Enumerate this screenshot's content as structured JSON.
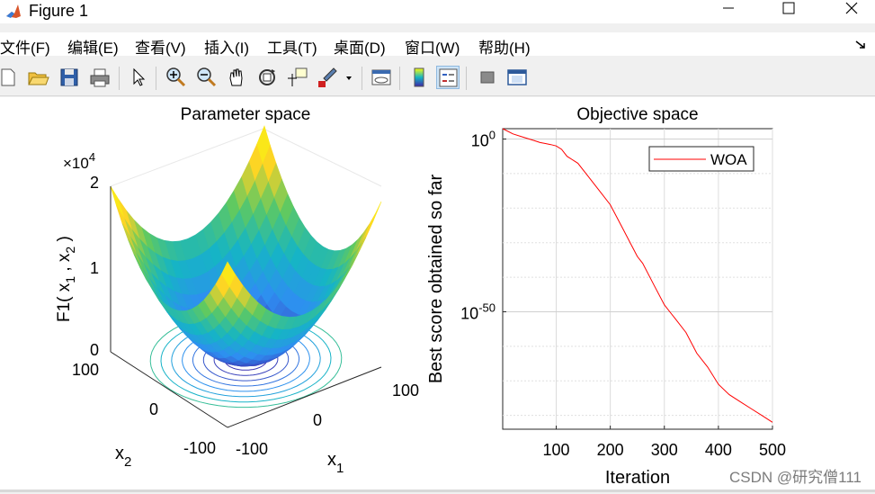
{
  "window": {
    "title": "Figure 1",
    "minimize_icon": "minimize-icon",
    "maximize_icon": "maximize-icon",
    "close_icon": "close-icon"
  },
  "menu": [
    "文件(F)",
    "编辑(E)",
    "查看(V)",
    "插入(I)",
    "工具(T)",
    "桌面(D)",
    "窗口(W)",
    "帮助(H)"
  ],
  "toolbar": [
    "new-figure-icon",
    "open-icon",
    "save-icon",
    "print-icon",
    "pointer-icon",
    "zoom-in-icon",
    "zoom-out-icon",
    "pan-icon",
    "rotate-icon",
    "data-cursor-icon",
    "brush-icon",
    "link-plot-icon",
    "colorbar-icon",
    "legend-icon",
    "hide-plot-tools-icon",
    "show-plot-tools-icon"
  ],
  "watermark": "CSDN @研究僧111",
  "chart_data": [
    {
      "type": "surface",
      "title": "Parameter space",
      "xlabel": "x",
      "xlabel_sub": "1",
      "ylabel": "x",
      "ylabel_sub": "2",
      "zlabel": "F1( x , x )",
      "zlabel_parts": [
        "F1( x",
        "1",
        " , x",
        "2",
        " )"
      ],
      "x_ticks": [
        "-100",
        "0",
        "100"
      ],
      "y_ticks": [
        "-100",
        "0",
        "100"
      ],
      "z_ticks": [
        "0",
        "1",
        "2"
      ],
      "z_exponent_base": "×10",
      "z_exponent": "4",
      "xlim": [
        -100,
        100
      ],
      "ylim": [
        -100,
        100
      ],
      "zlim": [
        0,
        20000
      ],
      "function": "x1^2 + x2^2",
      "colormap": [
        "#3e26a8",
        "#2f8ef2",
        "#15b5c4",
        "#5ec962",
        "#fcd225",
        "#f9fb0e"
      ]
    },
    {
      "type": "line",
      "title": "Objective space",
      "xlabel": "Iteration",
      "ylabel": "Best score obtained so far",
      "y_scale": "log",
      "xlim": [
        1,
        500
      ],
      "ylim_exp": [
        -84,
        3
      ],
      "x_ticks": [
        "100",
        "200",
        "300",
        "400",
        "500"
      ],
      "y_ticks": [
        {
          "base": "10",
          "exp": "0"
        },
        {
          "base": "10",
          "exp": "-50"
        }
      ],
      "grid": true,
      "legend_position": "top-right",
      "series": [
        {
          "name": "WOA",
          "color": "#ff0000",
          "x": [
            1,
            20,
            40,
            60,
            70,
            80,
            90,
            100,
            110,
            120,
            140,
            160,
            180,
            200,
            220,
            240,
            250,
            260,
            280,
            300,
            310,
            320,
            340,
            360,
            380,
            400,
            420,
            440,
            460,
            480,
            500
          ],
          "log10_y": [
            3,
            1.5,
            0.5,
            -0.5,
            -1,
            -1.3,
            -1.6,
            -2,
            -3,
            -5,
            -7,
            -11,
            -15,
            -19,
            -25,
            -31,
            -34,
            -36,
            -42,
            -48,
            -50,
            -52,
            -56,
            -62,
            -66,
            -71,
            -74,
            -76,
            -78,
            -80,
            -82
          ]
        }
      ]
    }
  ]
}
